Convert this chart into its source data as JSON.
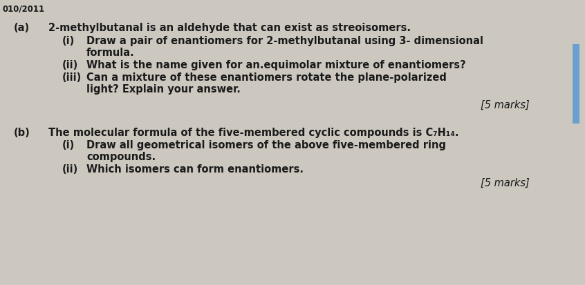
{
  "bg_color": "#ccc8c0",
  "text_color": "#1a1a1a",
  "header": "010/2011",
  "part_a_label": "(a)",
  "part_a_intro": "2-methylbutanal is an aldehyde that can exist as streoisomers.",
  "part_a_i_label": "(i)",
  "part_a_i_line1": "Draw a pair of enantiomers for 2-methylbutanal using 3- dimensional",
  "part_a_i_line2": "formula.",
  "part_a_ii_label": "(ii)",
  "part_a_ii_text": "What is the name given for an.equimolar mixture of enantiomers?",
  "part_a_iii_label": "(iii)",
  "part_a_iii_line1": "Can a mixture of these enantiomers rotate the plane-polarized",
  "part_a_iii_line2": "light? Explain your answer.",
  "marks_a": "[5 marks]",
  "part_b_label": "(b)",
  "part_b_intro": "The molecular formula of the five-membered cyclic compounds is C₇H₁₄.",
  "part_b_i_label": "(i)",
  "part_b_i_line1": "Draw all geometrical isomers of the above five-membered ring",
  "part_b_i_line2": "compounds.",
  "part_b_ii_label": "(ii)",
  "part_b_ii_text": "Which isomers can form enantiomers.",
  "marks_b": "[5 marks]",
  "right_bar_color": "#6a9fd0",
  "font_size_header": 8.5,
  "font_size_body": 10.5,
  "font_family": "DejaVu Sans"
}
